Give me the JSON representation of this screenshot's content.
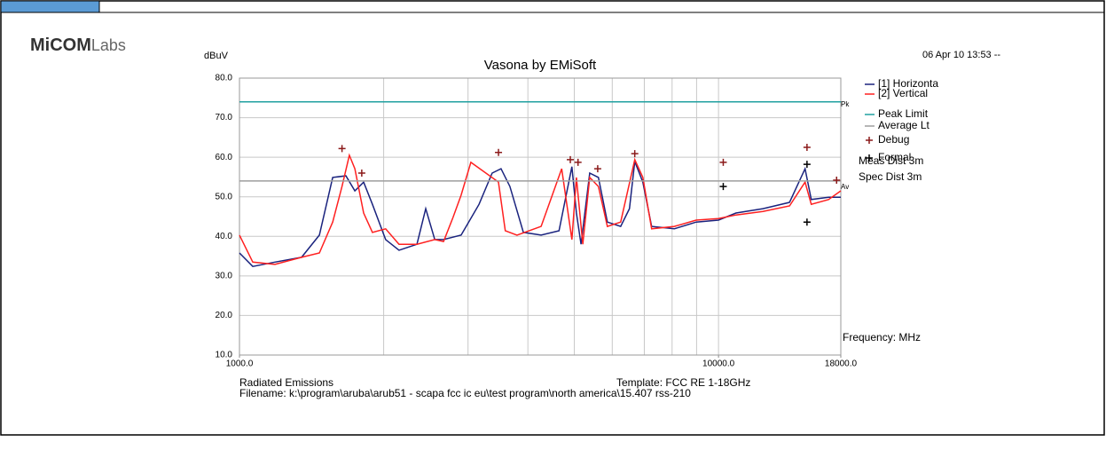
{
  "logo": {
    "bold": "MiCOM",
    "light": "Labs"
  },
  "chart_data": {
    "type": "line",
    "title": "Vasona by EMiSoft",
    "y_label": "dBuV",
    "x_label": "Frequency: MHz",
    "date": "06 Apr 10 13:53 --",
    "notes": [
      "Meas Dist 3m",
      "Spec Dist 3m"
    ],
    "limit_tags": [
      "Pk",
      "Av"
    ],
    "footer": {
      "left": "Radiated Emissions",
      "template": "Template: FCC RE 1-18GHz",
      "filename": "Filename: k:\\program\\aruba\\arub51 - scapa fcc ic eu\\test program\\north america\\15.407 rss-210"
    },
    "x_scale": "log",
    "xlim": [
      1000,
      18000
    ],
    "ylim": [
      10,
      80
    ],
    "xticks": [
      {
        "value": 1000,
        "label": "1000.0"
      },
      {
        "value": 10000,
        "label": "10000.0"
      },
      {
        "value": 18000,
        "label": "18000.0"
      }
    ],
    "xgrid": [
      2000,
      3000,
      4000,
      5000,
      6000,
      7000,
      8000,
      9000,
      10000
    ],
    "yticks": [
      {
        "value": 10,
        "label": "10.0"
      },
      {
        "value": 20,
        "label": "20.0"
      },
      {
        "value": 30,
        "label": "30.0"
      },
      {
        "value": 40,
        "label": "40.0"
      },
      {
        "value": 50,
        "label": "50.0"
      },
      {
        "value": 60,
        "label": "60.0"
      },
      {
        "value": 70,
        "label": "70.0"
      },
      {
        "value": 80,
        "label": "80.0"
      }
    ],
    "grid": true,
    "series": [
      {
        "name": "[1] Horizonta",
        "color": "#1a237e",
        "style": "line",
        "x": [
          1000,
          1066,
          1186,
          1348,
          1468,
          1565,
          1668,
          1741,
          1816,
          1895,
          2019,
          2153,
          2347,
          2448,
          2557,
          2667,
          2902,
          3163,
          3369,
          3516,
          3669,
          3915,
          4262,
          4645,
          4943,
          5050,
          5163,
          5384,
          5615,
          5860,
          6248,
          6518,
          6686,
          6951,
          7249,
          8085,
          8981,
          10000,
          10875,
          12380,
          14070,
          15160,
          15620,
          16970,
          18000
        ],
        "values": [
          35.8,
          32.4,
          33.5,
          34.7,
          40.3,
          54.9,
          55.3,
          51.5,
          53.7,
          48.1,
          39.2,
          36.5,
          38.0,
          47.0,
          39.2,
          39.2,
          40.3,
          48.1,
          56.0,
          57.1,
          52.6,
          41.0,
          40.3,
          41.4,
          57.6,
          45.9,
          38.0,
          56.0,
          54.9,
          43.6,
          42.5,
          47.0,
          58.9,
          53.7,
          42.5,
          41.9,
          43.6,
          44.1,
          45.9,
          47.0,
          48.6,
          57.1,
          49.3,
          49.9,
          49.9
        ]
      },
      {
        "name": "[2] Vertical",
        "color": "#ff2020",
        "style": "line",
        "x": [
          1000,
          1066,
          1186,
          1348,
          1468,
          1565,
          1637,
          1696,
          1741,
          1816,
          1895,
          2019,
          2153,
          2347,
          2557,
          2667,
          2792,
          2902,
          3041,
          3473,
          3588,
          3796,
          4262,
          4706,
          4943,
          5050,
          5209,
          5384,
          5615,
          5860,
          6248,
          6686,
          6951,
          7249,
          8085,
          8981,
          10000,
          10875,
          12380,
          14070,
          15160,
          15620,
          16970,
          18000
        ],
        "values": [
          40.3,
          33.5,
          32.9,
          34.7,
          35.8,
          43.6,
          52.6,
          60.5,
          57.1,
          45.9,
          41.0,
          41.9,
          38.0,
          38.0,
          39.2,
          38.7,
          44.8,
          50.4,
          58.7,
          53.7,
          41.4,
          40.3,
          42.5,
          57.1,
          39.2,
          54.9,
          38.0,
          54.9,
          52.6,
          42.5,
          43.6,
          59.4,
          54.9,
          41.9,
          42.5,
          44.1,
          44.5,
          45.4,
          46.3,
          47.7,
          53.7,
          48.1,
          49.3,
          51.5
        ]
      },
      {
        "name": "Peak Limit",
        "color": "#20a0a0",
        "style": "line",
        "x": [
          1000,
          18000
        ],
        "values": [
          74,
          74
        ]
      },
      {
        "name": "Average Lt",
        "color": "#9e9e9e",
        "style": "line",
        "x": [
          1000,
          18000
        ],
        "values": [
          54,
          54
        ]
      },
      {
        "name": "Debug",
        "color": "#8b1a1a",
        "style": "plus",
        "x": [
          1637,
          1800,
          3473,
          4905,
          5090,
          5595,
          6686,
          10230,
          15300,
          17640
        ],
        "values": [
          62.2,
          56.0,
          61.2,
          59.4,
          58.7,
          57.1,
          60.9,
          58.7,
          62.5,
          54.2
        ]
      },
      {
        "name": "Formal",
        "color": "#000000",
        "style": "plus",
        "x": [
          10230,
          15300,
          15300
        ],
        "values": [
          52.6,
          58.2,
          43.6
        ]
      }
    ]
  }
}
